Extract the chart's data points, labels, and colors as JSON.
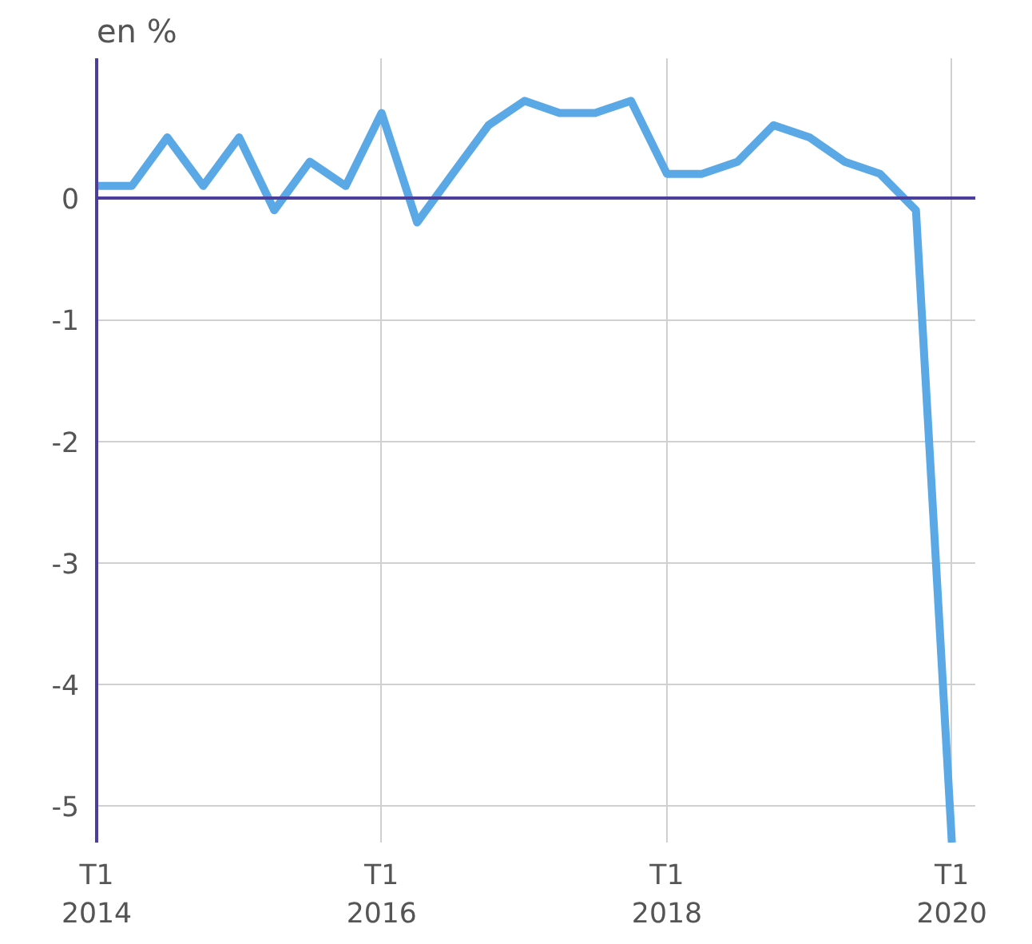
{
  "chart_data": {
    "type": "line",
    "title": "en %",
    "x": [
      "2014-01",
      "2014-04",
      "2014-07",
      "2014-10",
      "2015-01",
      "2015-04",
      "2015-07",
      "2015-10",
      "2016-01",
      "2016-04",
      "2016-07",
      "2016-10",
      "2017-01",
      "2017-04",
      "2017-07",
      "2017-10",
      "2018-01",
      "2018-04",
      "2018-07",
      "2018-10",
      "2019-01",
      "2019-04",
      "2019-07",
      "2019-10",
      "2020-01"
    ],
    "series": [
      {
        "color": "#5aa9e6",
        "values": [
          0.1,
          0.1,
          0.5,
          0.1,
          0.5,
          -0.1,
          0.3,
          0.1,
          0.7,
          -0.2,
          0.2,
          0.6,
          0.8,
          0.7,
          0.7,
          0.8,
          0.2,
          0.2,
          0.3,
          0.6,
          0.5,
          0.3,
          0.2,
          -0.1,
          -5.3
        ]
      }
    ],
    "xlim": [
      "2014-01",
      "2020-03"
    ],
    "ylim": [
      -5.3,
      1.15
    ],
    "xticks": [
      {
        "value": "2014-01",
        "label": "T1\n2014"
      },
      {
        "value": "2016-01",
        "label": "T1\n2016"
      },
      {
        "value": "2018-01",
        "label": "T1\n2018"
      },
      {
        "value": "2020-01",
        "label": "T1\n2020"
      }
    ],
    "yticks": [
      0,
      -1,
      -2,
      -3,
      -4,
      -5
    ],
    "ref_lines": [
      {
        "axis": "y",
        "value": 0,
        "color": "#4b3f9e"
      }
    ],
    "grid": true,
    "marker": "none",
    "line_style": "solid"
  }
}
